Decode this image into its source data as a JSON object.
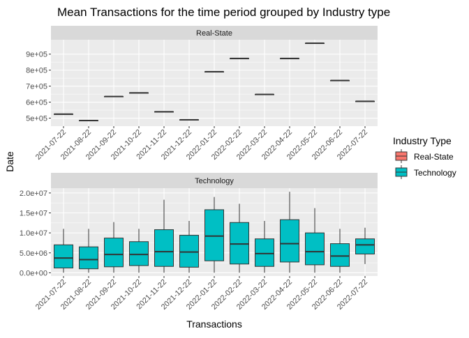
{
  "chart_data": {
    "type": "boxplot",
    "title": "Mean Transactions for the time period grouped by Industry type",
    "xlabel": "Transactions",
    "ylabel": "Date",
    "categories": [
      "2021-07-22",
      "2021-08-22",
      "2021-09-22",
      "2021-10-22",
      "2021-11-22",
      "2021-12-22",
      "2022-01-22",
      "2022-02-22",
      "2022-03-22",
      "2022-04-22",
      "2022-05-22",
      "2022-06-22",
      "2022-07-22"
    ],
    "legend": {
      "title": "Industry Type",
      "position": "right",
      "entries": [
        {
          "label": "Real-State",
          "color": "#F8766D"
        },
        {
          "label": "Technology",
          "color": "#00BFC4"
        }
      ]
    },
    "grid": true,
    "panels": [
      {
        "strip": "Real-State",
        "color": "#F8766D",
        "ylim": [
          450000,
          990000
        ],
        "yticks": [
          500000,
          600000,
          700000,
          800000,
          900000
        ],
        "yticklabels": [
          "5e+05",
          "6e+05",
          "7e+05",
          "8e+05",
          "9e+05"
        ],
        "boxes": [
          {
            "min": 525000,
            "q1": 525000,
            "median": 525000,
            "q3": 525000,
            "max": 525000
          },
          {
            "min": 485000,
            "q1": 485000,
            "median": 485000,
            "q3": 485000,
            "max": 485000
          },
          {
            "min": 635000,
            "q1": 635000,
            "median": 635000,
            "q3": 635000,
            "max": 635000
          },
          {
            "min": 658000,
            "q1": 658000,
            "median": 658000,
            "q3": 658000,
            "max": 658000
          },
          {
            "min": 540000,
            "q1": 540000,
            "median": 540000,
            "q3": 540000,
            "max": 540000
          },
          {
            "min": 490000,
            "q1": 490000,
            "median": 490000,
            "q3": 490000,
            "max": 490000
          },
          {
            "min": 790000,
            "q1": 790000,
            "median": 790000,
            "q3": 790000,
            "max": 790000
          },
          {
            "min": 873000,
            "q1": 873000,
            "median": 873000,
            "q3": 873000,
            "max": 873000
          },
          {
            "min": 648000,
            "q1": 648000,
            "median": 648000,
            "q3": 648000,
            "max": 648000
          },
          {
            "min": 873000,
            "q1": 873000,
            "median": 873000,
            "q3": 873000,
            "max": 873000
          },
          {
            "min": 968000,
            "q1": 968000,
            "median": 968000,
            "q3": 968000,
            "max": 968000
          },
          {
            "min": 735000,
            "q1": 735000,
            "median": 735000,
            "q3": 735000,
            "max": 735000
          },
          {
            "min": 605000,
            "q1": 605000,
            "median": 605000,
            "q3": 605000,
            "max": 605000
          }
        ]
      },
      {
        "strip": "Technology",
        "color": "#00BFC4",
        "ylim": [
          -800000,
          21200000
        ],
        "yticks": [
          0,
          5000000,
          10000000,
          15000000,
          20000000
        ],
        "yticklabels": [
          "0.0e+00",
          "5.0e+06",
          "1.0e+07",
          "1.5e+07",
          "2.0e+07"
        ],
        "boxes": [
          {
            "min": 0,
            "q1": 1200000,
            "median": 3700000,
            "q3": 7000000,
            "max": 11000000
          },
          {
            "min": 0,
            "q1": 1000000,
            "median": 3300000,
            "q3": 6500000,
            "max": 11000000
          },
          {
            "min": 0,
            "q1": 1500000,
            "median": 4600000,
            "q3": 8700000,
            "max": 12700000
          },
          {
            "min": 0,
            "q1": 1800000,
            "median": 4600000,
            "q3": 7800000,
            "max": 11000000
          },
          {
            "min": 0,
            "q1": 1600000,
            "median": 5300000,
            "q3": 10800000,
            "max": 18300000
          },
          {
            "min": 0,
            "q1": 1400000,
            "median": 5200000,
            "q3": 9400000,
            "max": 13000000
          },
          {
            "min": 0,
            "q1": 3000000,
            "median": 9200000,
            "q3": 15800000,
            "max": 19000000
          },
          {
            "min": 0,
            "q1": 2200000,
            "median": 7200000,
            "q3": 12600000,
            "max": 17300000
          },
          {
            "min": 0,
            "q1": 1600000,
            "median": 4800000,
            "q3": 8500000,
            "max": 13000000
          },
          {
            "min": 0,
            "q1": 2700000,
            "median": 7300000,
            "q3": 13300000,
            "max": 20300000
          },
          {
            "min": 0,
            "q1": 2000000,
            "median": 5300000,
            "q3": 10000000,
            "max": 16200000
          },
          {
            "min": 0,
            "q1": 1600000,
            "median": 4200000,
            "q3": 7300000,
            "max": 11000000
          },
          {
            "min": 2200000,
            "q1": 4700000,
            "median": 7000000,
            "q3": 8500000,
            "max": 11300000
          }
        ]
      }
    ]
  }
}
